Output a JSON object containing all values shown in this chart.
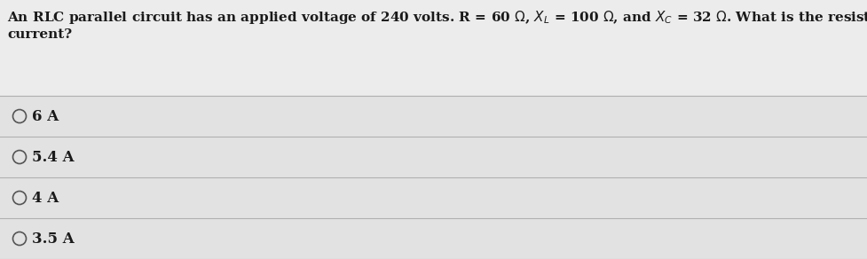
{
  "background_color": "#e8e8e8",
  "question_area_color": "#f0f0f0",
  "options_area_color": "#e0e0e0",
  "question_line1": "An RLC parallel circuit has an applied voltage of 240 volts. R = 60 Ω, X_L = 100 Ω, and X_C = 32 Ω. What is the resistive",
  "question_line2": "current?",
  "options": [
    "6 A",
    "5.4 A",
    "4 A",
    "3.5 A"
  ],
  "divider_color": "#b0b0b0",
  "text_color": "#1a1a1a",
  "question_fontsize": 11.0,
  "option_fontsize": 12.0,
  "circle_color": "#555555",
  "fig_width": 9.77,
  "fig_height": 2.92,
  "dpi": 100
}
